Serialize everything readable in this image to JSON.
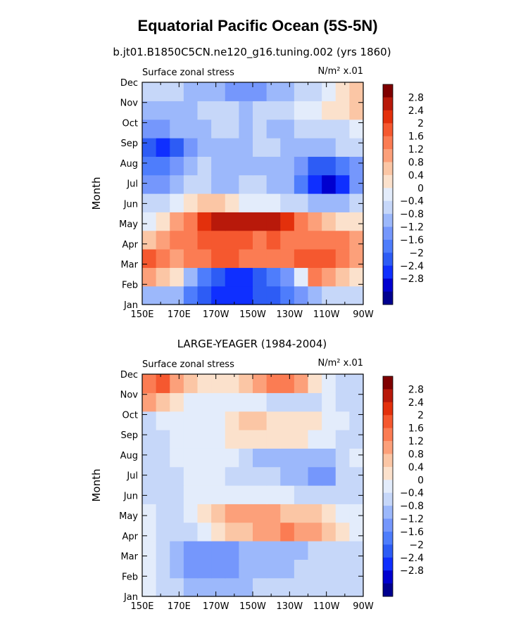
{
  "figure": {
    "title": "Equatorial Pacific Ocean (5S-5N)"
  },
  "chart_data": [
    {
      "type": "heatmap",
      "title": "b.jt01.B1850C5CN.ne120_g16.tuning.002 (yrs 1860)",
      "left_label": "Surface zonal stress",
      "units_label": "N/m² x.01",
      "ylabel": "Month",
      "x_ticks": [
        "150E",
        "170E",
        "170W",
        "150W",
        "130W",
        "110W",
        "90W"
      ],
      "y_ticks": [
        "Jan",
        "Feb",
        "Mar",
        "Apr",
        "May",
        "Jun",
        "Jul",
        "Aug",
        "Sep",
        "Oct",
        "Nov",
        "Dec"
      ],
      "colorbar_ticks": [
        "2.8",
        "2.4",
        "2",
        "1.6",
        "1.2",
        "0.8",
        "0.4",
        "0",
        "−0.4",
        "−0.8",
        "−1.2",
        "−1.6",
        "−2",
        "−2.4",
        "−2.8"
      ],
      "grid": [
        [
          -0.5,
          -0.6,
          -0.8,
          -1.6,
          -2.0,
          -2.2,
          -2.4,
          -2.2,
          -2.0,
          -2.0,
          -1.6,
          -1.0,
          -0.6,
          -0.4,
          -0.3,
          -0.2
        ],
        [
          1.4,
          0.8,
          0.4,
          -0.8,
          -1.6,
          -2.0,
          -2.2,
          -2.2,
          -1.8,
          -1.6,
          -1.2,
          0.0,
          1.6,
          1.2,
          0.8,
          0.4
        ],
        [
          2.2,
          1.6,
          1.4,
          1.6,
          1.8,
          2.2,
          2.0,
          1.8,
          1.6,
          1.8,
          1.8,
          2.0,
          2.2,
          2.0,
          1.8,
          1.2
        ],
        [
          1.0,
          1.2,
          1.6,
          1.8,
          2.0,
          2.0,
          2.2,
          2.0,
          1.8,
          2.0,
          1.8,
          1.8,
          1.6,
          1.6,
          1.6,
          1.2
        ],
        [
          0.2,
          0.6,
          1.2,
          1.8,
          2.4,
          2.8,
          3.0,
          3.0,
          3.0,
          2.8,
          2.4,
          1.8,
          1.2,
          0.8,
          0.4,
          0.4
        ],
        [
          -0.4,
          -0.2,
          0.2,
          0.6,
          0.8,
          0.8,
          0.4,
          0.2,
          0.2,
          0.0,
          -0.2,
          -0.4,
          -0.8,
          -0.8,
          -0.6,
          -0.2
        ],
        [
          -1.2,
          -1.0,
          -0.6,
          -0.4,
          -0.4,
          -0.6,
          -0.6,
          -0.4,
          -0.4,
          -0.6,
          -0.8,
          -1.6,
          -2.4,
          -2.8,
          -2.4,
          -1.2
        ],
        [
          -1.6,
          -1.6,
          -1.2,
          -0.8,
          -0.4,
          -0.6,
          -0.6,
          -0.6,
          -0.6,
          -0.6,
          -0.8,
          -1.2,
          -1.8,
          -2.0,
          -1.6,
          -1.0
        ],
        [
          -2.0,
          -2.4,
          -2.0,
          -1.2,
          -0.8,
          -0.8,
          -0.6,
          -0.6,
          -0.4,
          -0.4,
          -0.6,
          -0.8,
          -0.8,
          -0.6,
          -0.4,
          -0.4
        ],
        [
          -1.2,
          -1.2,
          -0.8,
          -0.6,
          -0.6,
          -0.4,
          -0.4,
          -0.6,
          -0.4,
          -0.6,
          -0.6,
          -0.4,
          -0.4,
          -0.2,
          -0.2,
          0.0
        ],
        [
          -0.8,
          -0.6,
          -0.6,
          -0.6,
          -0.4,
          -0.4,
          -0.4,
          -0.6,
          -0.4,
          -0.4,
          -0.4,
          0.0,
          0.2,
          0.4,
          0.6,
          0.8
        ],
        [
          -0.4,
          -0.2,
          -0.4,
          -0.6,
          -0.6,
          -0.8,
          -1.0,
          -1.2,
          -1.0,
          -0.8,
          -0.6,
          -0.4,
          -0.2,
          0.0,
          0.4,
          0.8
        ]
      ]
    },
    {
      "type": "heatmap",
      "title": "LARGE-YEAGER (1984-2004)",
      "left_label": "Surface zonal stress",
      "units_label": "N/m² x.01",
      "ylabel": "Month",
      "x_ticks": [
        "150E",
        "170E",
        "170W",
        "150W",
        "130W",
        "110W",
        "90W"
      ],
      "y_ticks": [
        "Jan",
        "Feb",
        "Mar",
        "Apr",
        "May",
        "Jun",
        "Jul",
        "Aug",
        "Sep",
        "Oct",
        "Nov",
        "Dec"
      ],
      "colorbar_ticks": [
        "2.8",
        "2.4",
        "2",
        "1.6",
        "1.2",
        "0.8",
        "0.4",
        "0",
        "−0.4",
        "−0.8",
        "−1.2",
        "−1.6",
        "−2",
        "−2.4",
        "−2.8"
      ],
      "grid": [
        [
          0.2,
          -0.2,
          -0.4,
          -0.6,
          -0.6,
          -0.8,
          -0.6,
          -0.6,
          -0.4,
          -0.4,
          -0.4,
          -0.2,
          -0.2,
          -0.2,
          -0.2,
          -0.2
        ],
        [
          0.0,
          -0.4,
          -0.8,
          -1.0,
          -1.2,
          -1.2,
          -1.0,
          -0.8,
          -0.8,
          -0.6,
          -0.6,
          -0.4,
          -0.4,
          -0.4,
          -0.2,
          -0.2
        ],
        [
          0.0,
          -0.4,
          -0.8,
          -1.2,
          -1.2,
          -1.2,
          -1.0,
          -0.8,
          -0.8,
          -0.8,
          -0.6,
          -0.6,
          -0.4,
          -0.4,
          -0.2,
          -0.2
        ],
        [
          0.0,
          -0.2,
          -0.4,
          -0.4,
          0.2,
          0.6,
          1.0,
          1.0,
          1.2,
          1.4,
          1.6,
          1.4,
          1.2,
          0.8,
          0.4,
          0.2
        ],
        [
          0.0,
          -0.2,
          -0.2,
          0.2,
          0.6,
          1.0,
          1.2,
          1.2,
          1.2,
          1.2,
          1.0,
          1.0,
          0.8,
          0.6,
          0.2,
          0.0
        ],
        [
          -0.2,
          -0.4,
          -0.2,
          0.0,
          0.2,
          0.2,
          0.2,
          0.2,
          0.2,
          0.2,
          0.0,
          -0.2,
          -0.2,
          -0.2,
          -0.2,
          -0.2
        ],
        [
          -0.2,
          -0.4,
          -0.2,
          0.0,
          0.2,
          0.0,
          -0.2,
          -0.4,
          -0.4,
          -0.4,
          -0.6,
          -0.6,
          -1.0,
          -1.0,
          -0.4,
          -0.2
        ],
        [
          -0.4,
          -0.2,
          0.0,
          0.2,
          0.2,
          0.2,
          0.0,
          -0.4,
          -0.6,
          -0.8,
          -0.8,
          -0.6,
          -0.8,
          -0.6,
          -0.2,
          0.0
        ],
        [
          -0.4,
          -0.2,
          0.0,
          0.2,
          0.2,
          0.2,
          0.4,
          0.6,
          0.6,
          0.6,
          0.6,
          0.4,
          0.2,
          0.0,
          -0.2,
          -0.2
        ],
        [
          -0.4,
          0.0,
          0.2,
          0.2,
          0.2,
          0.2,
          0.4,
          0.8,
          0.8,
          0.6,
          0.4,
          0.4,
          0.4,
          0.2,
          0.0,
          -0.2
        ],
        [
          1.2,
          0.8,
          0.4,
          0.2,
          0.2,
          0.2,
          0.2,
          0.2,
          0.0,
          -0.2,
          -0.2,
          -0.4,
          -0.2,
          0.0,
          -0.2,
          -0.4
        ],
        [
          1.6,
          2.0,
          1.4,
          0.8,
          0.6,
          0.6,
          0.4,
          0.8,
          1.2,
          1.6,
          1.8,
          1.2,
          0.6,
          0.2,
          -0.2,
          -0.4
        ]
      ]
    }
  ],
  "colors": {
    "levels": [
      "#00008f",
      "#0000cf",
      "#0f2fff",
      "#2d5cf5",
      "#4e7dfc",
      "#7597fc",
      "#9cb8fb",
      "#c6d7f9",
      "#e3ecfb",
      "#fbe1cc",
      "#fbc6a5",
      "#fca07a",
      "#fb7c53",
      "#f5582f",
      "#e3300c",
      "#b8190a",
      "#7f0000"
    ],
    "thresholds": [
      -2.8,
      -2.4,
      -2.0,
      -1.6,
      -1.2,
      -0.8,
      -0.4,
      0.0,
      0.4,
      0.8,
      1.2,
      1.6,
      2.0,
      2.4,
      2.8
    ]
  }
}
